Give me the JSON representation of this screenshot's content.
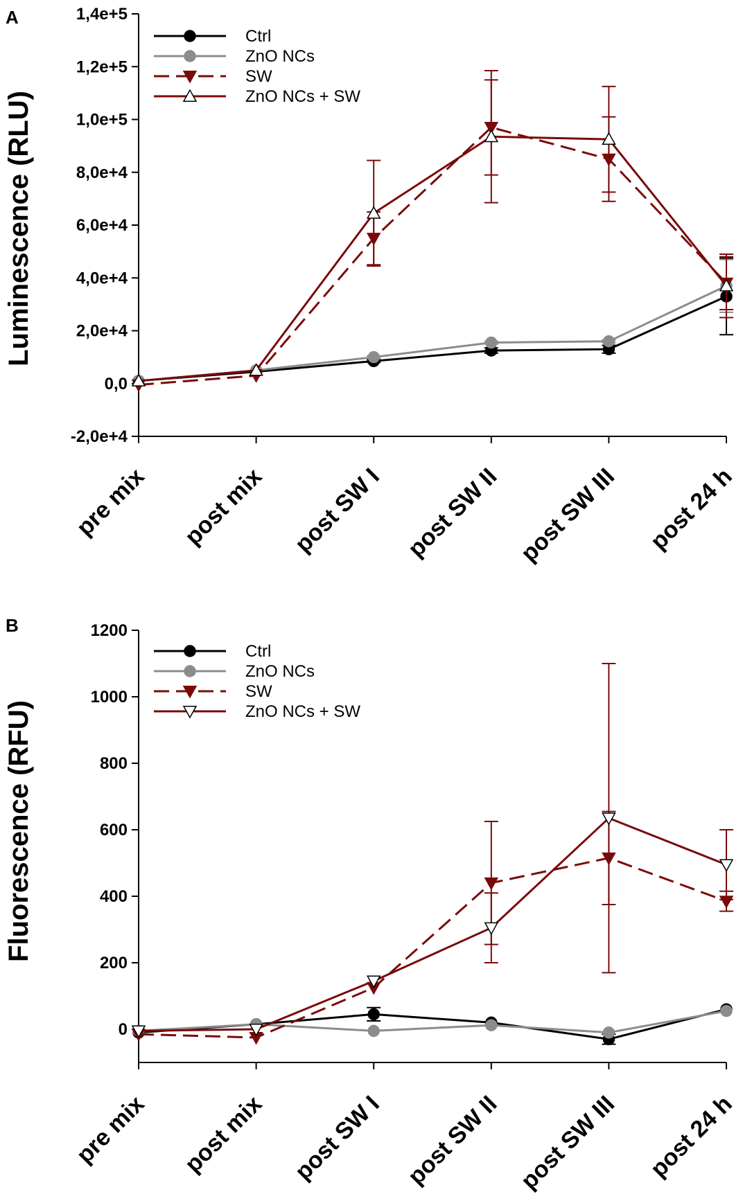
{
  "chart_data": [
    {
      "panel": "A",
      "type": "line",
      "ylabel": "Luminescence (RLU)",
      "xlabel": "",
      "ylim": [
        -20000,
        140000
      ],
      "yticks": [
        -20000,
        0,
        20000,
        40000,
        60000,
        80000,
        100000,
        120000,
        140000
      ],
      "ytick_labels": [
        "-2,0e+4",
        "0,0",
        "2,0e+4",
        "4,0e+4",
        "6,0e+4",
        "8,0e+4",
        "1,0e+5",
        "1,2e+5",
        "1,4e+5"
      ],
      "categories": [
        "pre mix",
        "post mix",
        "post SW I",
        "post SW II",
        "post SW III",
        "post 24 h"
      ],
      "legend_position": "top-left",
      "series": [
        {
          "name": "Ctrl",
          "color": "#000000",
          "dash": false,
          "marker": "circle",
          "fill": "#000000",
          "values": [
            1000,
            4500,
            8500,
            12500,
            13000,
            33000
          ],
          "errors": [
            null,
            null,
            500,
            1000,
            1500,
            14500
          ]
        },
        {
          "name": "ZnO NCs",
          "color": "#8c8c8c",
          "dash": false,
          "marker": "circle",
          "fill": "#8c8c8c",
          "values": [
            1000,
            5000,
            10000,
            15500,
            16000,
            37000
          ],
          "errors": [
            null,
            null,
            500,
            500,
            500,
            10000
          ]
        },
        {
          "name": "SW",
          "color": "#7a0a0a",
          "dash": true,
          "marker": "triangle-down",
          "fill": "#7a0a0a",
          "values": [
            -500,
            3000,
            55000,
            97000,
            85000,
            38000
          ],
          "errors": [
            null,
            null,
            10000,
            18000,
            16000,
            10000
          ]
        },
        {
          "name": "ZnO NCs + SW",
          "color": "#7a0a0a",
          "dash": false,
          "marker": "triangle-up",
          "fill": "#ffffff",
          "values": [
            1000,
            5000,
            64500,
            93500,
            92500,
            37000
          ],
          "errors": [
            null,
            null,
            20000,
            25000,
            20000,
            12000
          ]
        }
      ]
    },
    {
      "panel": "B",
      "type": "line",
      "ylabel": "Fluorescence (RFU)",
      "xlabel": "",
      "ylim": [
        -100,
        1200
      ],
      "yticks": [
        0,
        200,
        400,
        600,
        800,
        1000,
        1200
      ],
      "ytick_labels": [
        "0",
        "200",
        "400",
        "600",
        "800",
        "1000",
        "1200"
      ],
      "categories": [
        "pre mix",
        "post mix",
        "post SW I",
        "post SW II",
        "post SW III",
        "post 24 h"
      ],
      "legend_position": "top-left",
      "series": [
        {
          "name": "Ctrl",
          "color": "#000000",
          "dash": false,
          "marker": "circle",
          "fill": "#000000",
          "values": [
            -10,
            15,
            45,
            20,
            -30,
            60
          ],
          "errors": [
            null,
            null,
            20,
            null,
            15,
            null
          ]
        },
        {
          "name": "ZnO NCs",
          "color": "#8c8c8c",
          "dash": false,
          "marker": "circle",
          "fill": "#8c8c8c",
          "values": [
            -5,
            15,
            -5,
            12,
            -10,
            55
          ],
          "errors": [
            null,
            null,
            null,
            null,
            null,
            null
          ]
        },
        {
          "name": "SW",
          "color": "#7a0a0a",
          "dash": true,
          "marker": "triangle-down",
          "fill": "#7a0a0a",
          "values": [
            -15,
            -25,
            125,
            440,
            515,
            385
          ],
          "errors": [
            null,
            null,
            null,
            185,
            140,
            30
          ]
        },
        {
          "name": "ZnO NCs + SW",
          "color": "#7a0a0a",
          "dash": false,
          "marker": "triangle-down",
          "fill": "#ffffff",
          "values": [
            -5,
            0,
            145,
            305,
            635,
            495
          ],
          "errors": [
            null,
            null,
            null,
            105,
            465,
            105
          ]
        }
      ]
    }
  ]
}
